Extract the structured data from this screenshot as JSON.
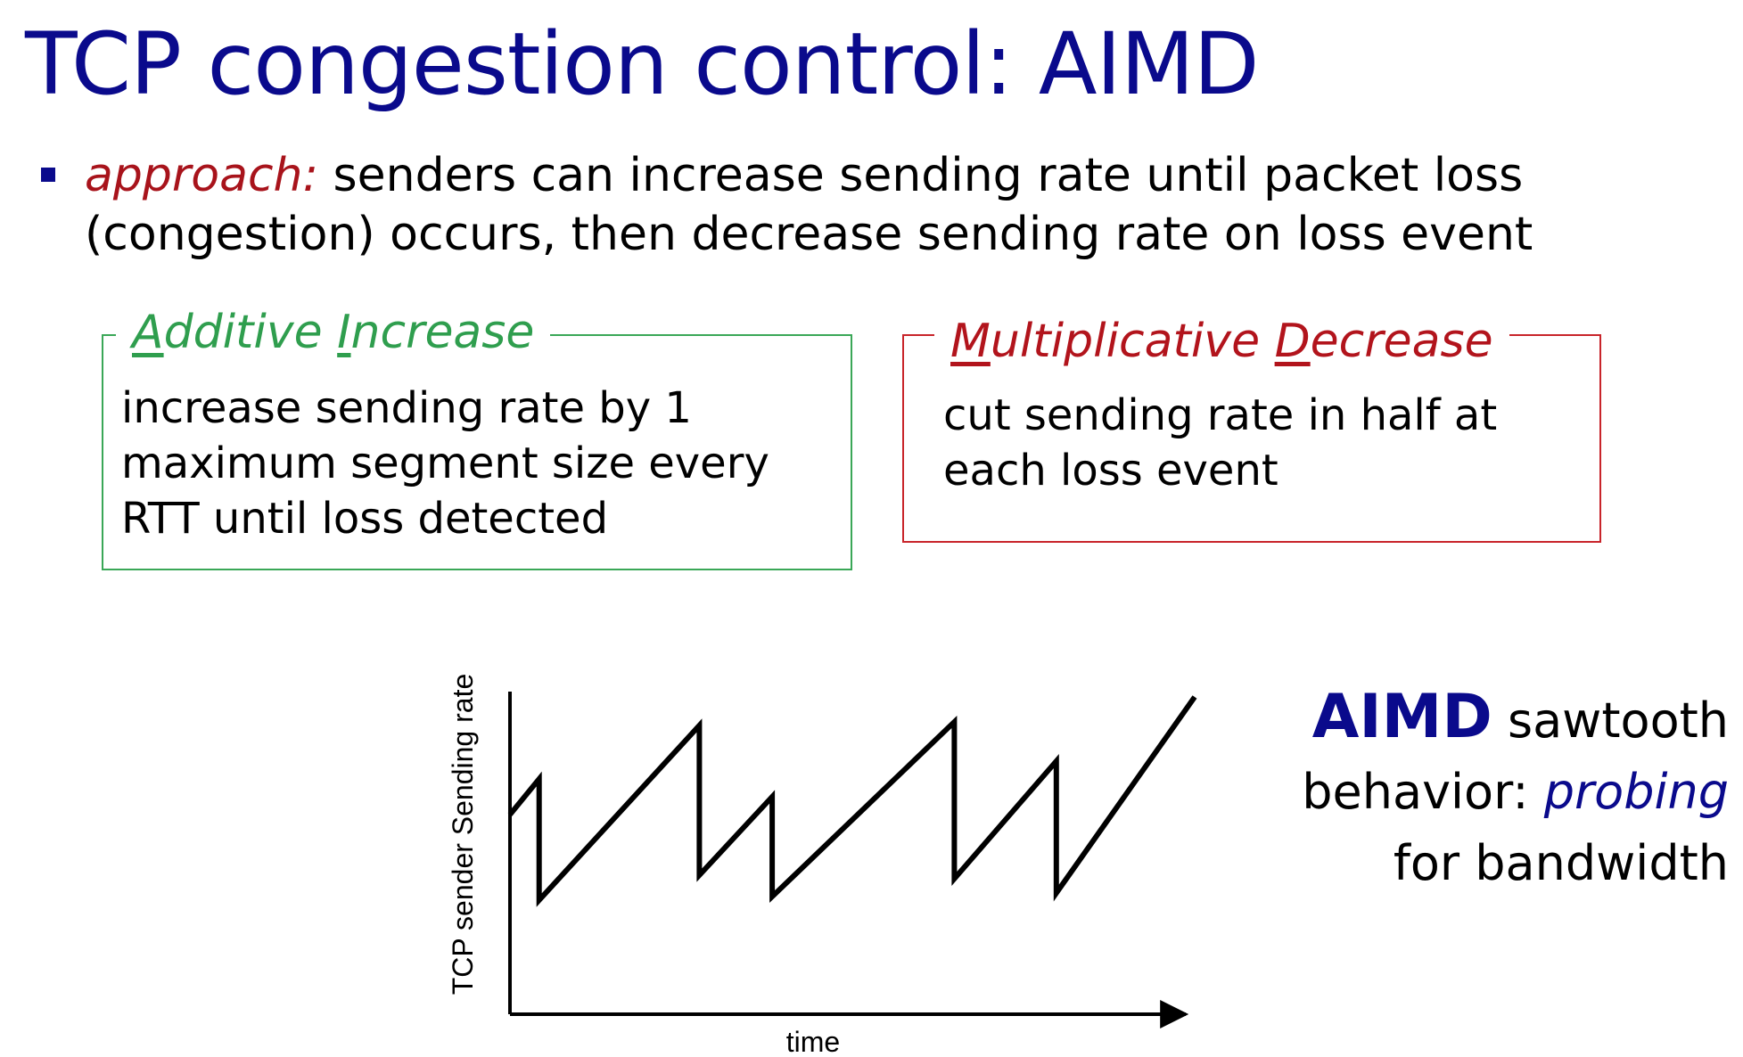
{
  "title": "TCP congestion control: AIMD",
  "bullet": {
    "lead": "approach:",
    "text": " senders can increase sending rate until packet loss (congestion) occurs, then decrease sending rate on loss event"
  },
  "additive_box": {
    "title_parts": [
      "A",
      "dditive ",
      "I",
      "ncrease"
    ],
    "lines": [
      "increase sending rate by 1",
      "maximum segment size every",
      "RTT until loss detected"
    ],
    "color": "#3aa757"
  },
  "multiplicative_box": {
    "title_parts": [
      "M",
      "ultiplicative ",
      "D",
      "ecrease"
    ],
    "lines": [
      "cut sending rate in half at",
      "each loss event"
    ],
    "color": "#c8242a"
  },
  "note": {
    "strong": "AIMD",
    "rest1": " sawtooth",
    "line2_a": "behavior: ",
    "line2_b": "probing",
    "line3": "for bandwidth"
  },
  "chart_data": {
    "type": "line",
    "xlabel": "time",
    "ylabel": "TCP sender  Sending rate",
    "series": [
      {
        "x": [
          0,
          2,
          2,
          13,
          13,
          18,
          18,
          30.5,
          30.5,
          37.5,
          37.5,
          47
        ],
        "y": [
          56,
          66,
          32,
          81,
          39,
          61,
          33,
          82,
          38,
          71,
          34,
          89
        ]
      }
    ],
    "xlim": [
      0,
      47
    ],
    "ylim": [
      0,
      100
    ],
    "grid": false
  }
}
